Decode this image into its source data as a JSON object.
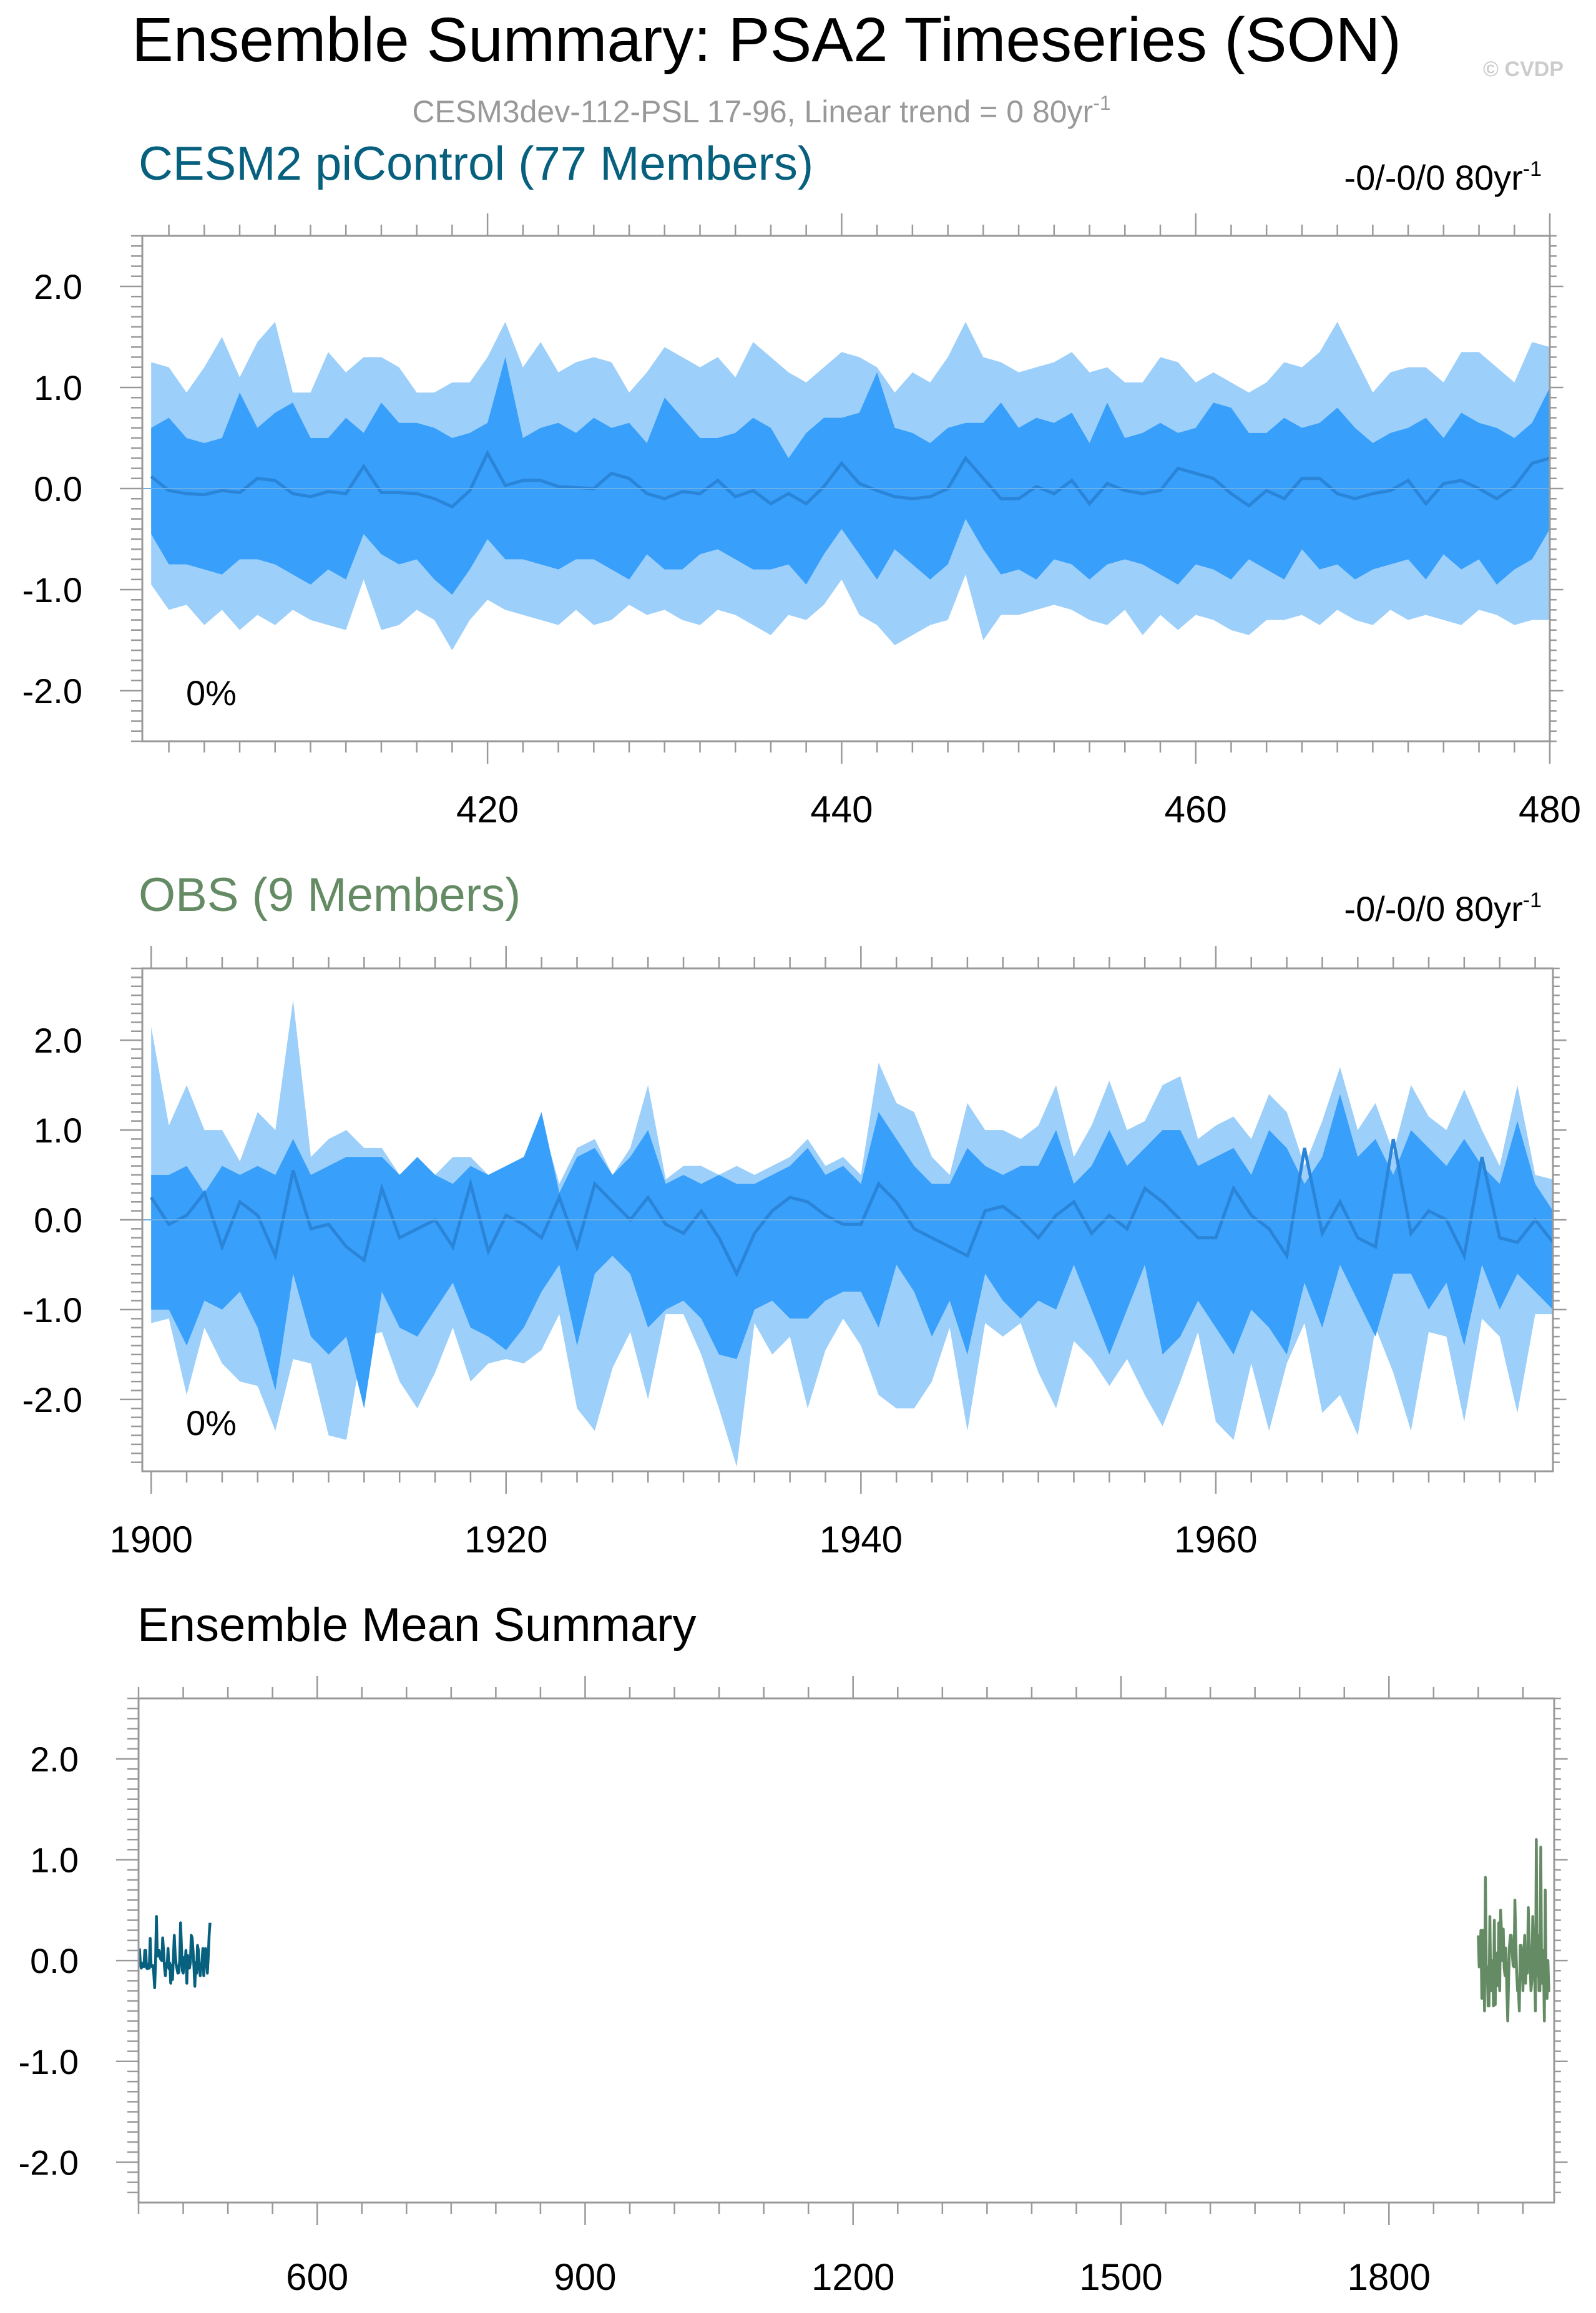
{
  "title": "Ensemble Summary: PSA2 Timeseries (SON)",
  "watermark": "© CVDP",
  "subtitle": "CESM3dev-112-PSL 17-96, Linear trend = 0 80yr",
  "subtitle_sup": "-1",
  "colors": {
    "outer_band": "#9ccffa",
    "inner_band": "#389ffa",
    "mean_line": "#2a84d8",
    "model": "#06607e",
    "obs": "#658b65",
    "subtitle": "#999999",
    "frame": "#999999",
    "text": "#000000"
  },
  "chart_data": [
    {
      "type": "area",
      "title": "CESM2 piControl (77 Members)",
      "title_color": "#06607e",
      "trend_label": "-0/-0/0 80yr",
      "trend_sup": "-1",
      "percent_label": "0%",
      "xlim": [
        400.5,
        480
      ],
      "ylim": [
        -2.5,
        2.5
      ],
      "xticks": [
        420,
        440,
        460,
        480
      ],
      "xtick_labels": [
        "420",
        "440",
        "460",
        "480"
      ],
      "yticks": [
        -2.0,
        -1.0,
        0.0,
        1.0,
        2.0
      ],
      "ytick_labels": [
        "-2.0",
        "-1.0",
        "0.0",
        "1.0",
        "2.0"
      ],
      "x_start": 401,
      "bands": {
        "outer_upper": [
          1.25,
          1.2,
          0.95,
          1.2,
          1.5,
          1.1,
          1.45,
          1.65,
          0.95,
          0.95,
          1.35,
          1.15,
          1.3,
          1.3,
          1.2,
          0.95,
          0.95,
          1.05,
          1.05,
          1.3,
          1.65,
          1.2,
          1.45,
          1.15,
          1.25,
          1.3,
          1.25,
          0.95,
          1.15,
          1.4,
          1.3,
          1.2,
          1.3,
          1.1,
          1.45,
          1.3,
          1.15,
          1.05,
          1.2,
          1.35,
          1.3,
          1.2,
          0.95,
          1.15,
          1.05,
          1.3,
          1.65,
          1.3,
          1.25,
          1.15,
          1.2,
          1.25,
          1.35,
          1.15,
          1.2,
          1.05,
          1.05,
          1.3,
          1.25,
          1.05,
          1.15,
          1.05,
          0.95,
          1.05,
          1.25,
          1.2,
          1.35,
          1.65,
          1.3,
          0.95,
          1.15,
          1.2,
          1.2,
          1.05,
          1.35,
          1.35,
          1.2,
          1.05,
          1.45,
          1.4
        ],
        "inner_upper": [
          0.6,
          0.7,
          0.5,
          0.45,
          0.5,
          0.95,
          0.6,
          0.75,
          0.85,
          0.5,
          0.5,
          0.7,
          0.55,
          0.85,
          0.65,
          0.65,
          0.6,
          0.5,
          0.55,
          0.65,
          1.3,
          0.5,
          0.6,
          0.65,
          0.55,
          0.7,
          0.6,
          0.65,
          0.45,
          0.9,
          0.7,
          0.5,
          0.5,
          0.55,
          0.7,
          0.6,
          0.3,
          0.55,
          0.7,
          0.7,
          0.75,
          1.15,
          0.6,
          0.55,
          0.45,
          0.6,
          0.65,
          0.65,
          0.85,
          0.6,
          0.7,
          0.65,
          0.75,
          0.45,
          0.85,
          0.5,
          0.55,
          0.65,
          0.55,
          0.6,
          0.85,
          0.8,
          0.55,
          0.55,
          0.7,
          0.6,
          0.65,
          0.8,
          0.6,
          0.45,
          0.55,
          0.6,
          0.7,
          0.5,
          0.75,
          0.65,
          0.6,
          0.5,
          0.65,
          1.0
        ],
        "mean": [
          0.12,
          -0.02,
          -0.05,
          -0.06,
          -0.02,
          -0.04,
          0.1,
          0.08,
          -0.05,
          -0.08,
          -0.03,
          -0.05,
          0.22,
          -0.04,
          -0.04,
          -0.05,
          -0.1,
          -0.18,
          -0.02,
          0.35,
          0.03,
          0.08,
          0.08,
          0.02,
          0.01,
          0.0,
          0.15,
          0.1,
          -0.05,
          -0.1,
          -0.03,
          -0.05,
          0.08,
          -0.08,
          -0.02,
          -0.15,
          -0.05,
          -0.15,
          0.02,
          0.25,
          0.05,
          -0.02,
          -0.08,
          -0.1,
          -0.08,
          0.0,
          0.3,
          0.1,
          -0.1,
          -0.1,
          0.02,
          -0.05,
          0.08,
          -0.15,
          0.05,
          -0.02,
          -0.05,
          -0.02,
          0.2,
          0.15,
          0.1,
          -0.05,
          -0.17,
          -0.02,
          -0.1,
          0.1,
          0.1,
          -0.05,
          -0.1,
          -0.05,
          -0.02,
          0.08,
          -0.15,
          0.05,
          0.08,
          0.0,
          -0.1,
          0.02,
          0.25,
          0.3
        ],
        "inner_lower": [
          -0.45,
          -0.75,
          -0.75,
          -0.8,
          -0.85,
          -0.7,
          -0.7,
          -0.75,
          -0.85,
          -0.95,
          -0.8,
          -0.9,
          -0.45,
          -0.65,
          -0.75,
          -0.7,
          -0.9,
          -1.05,
          -0.8,
          -0.5,
          -0.7,
          -0.7,
          -0.75,
          -0.8,
          -0.7,
          -0.7,
          -0.8,
          -0.9,
          -0.65,
          -0.8,
          -0.8,
          -0.65,
          -0.6,
          -0.7,
          -0.8,
          -0.8,
          -0.75,
          -0.95,
          -0.65,
          -0.4,
          -0.65,
          -0.9,
          -0.6,
          -0.75,
          -0.9,
          -0.75,
          -0.3,
          -0.6,
          -0.85,
          -0.8,
          -0.9,
          -0.7,
          -0.75,
          -0.9,
          -0.75,
          -0.7,
          -0.75,
          -0.85,
          -0.95,
          -0.75,
          -0.8,
          -0.9,
          -0.7,
          -0.8,
          -0.9,
          -0.6,
          -0.8,
          -0.75,
          -0.9,
          -0.8,
          -0.75,
          -0.7,
          -0.9,
          -0.65,
          -0.8,
          -0.7,
          -0.95,
          -0.8,
          -0.7,
          -0.4
        ],
        "outer_lower": [
          -0.95,
          -1.2,
          -1.15,
          -1.35,
          -1.2,
          -1.4,
          -1.25,
          -1.35,
          -1.2,
          -1.3,
          -1.35,
          -1.4,
          -0.9,
          -1.4,
          -1.35,
          -1.2,
          -1.3,
          -1.6,
          -1.3,
          -1.1,
          -1.2,
          -1.25,
          -1.3,
          -1.35,
          -1.2,
          -1.35,
          -1.3,
          -1.15,
          -1.25,
          -1.2,
          -1.3,
          -1.35,
          -1.2,
          -1.25,
          -1.35,
          -1.45,
          -1.25,
          -1.3,
          -1.15,
          -0.9,
          -1.25,
          -1.35,
          -1.55,
          -1.45,
          -1.35,
          -1.3,
          -0.85,
          -1.5,
          -1.25,
          -1.25,
          -1.2,
          -1.15,
          -1.2,
          -1.3,
          -1.35,
          -1.2,
          -1.45,
          -1.25,
          -1.4,
          -1.25,
          -1.3,
          -1.4,
          -1.45,
          -1.3,
          -1.3,
          -1.25,
          -1.35,
          -1.2,
          -1.3,
          -1.35,
          -1.2,
          -1.3,
          -1.25,
          -1.3,
          -1.35,
          -1.2,
          -1.25,
          -1.35,
          -1.3,
          -1.3
        ]
      }
    },
    {
      "type": "area",
      "title": "OBS (9 Members)",
      "title_color": "#658b65",
      "trend_label": "-0/-0/0 80yr",
      "trend_sup": "-1",
      "percent_label": "0%",
      "xlim": [
        1899.5,
        1979
      ],
      "ylim": [
        -2.8,
        2.8
      ],
      "xticks": [
        1900,
        1920,
        1940,
        1960
      ],
      "xtick_labels": [
        "1900",
        "1920",
        "1940",
        "1960"
      ],
      "yticks": [
        -2.0,
        -1.0,
        0.0,
        1.0,
        2.0
      ],
      "ytick_labels": [
        "-2.0",
        "-1.0",
        "0.0",
        "1.0",
        "2.0"
      ],
      "x_start": 1900,
      "bands": {
        "outer_upper": [
          2.15,
          1.05,
          1.5,
          1.0,
          1.0,
          0.65,
          1.2,
          1.0,
          2.45,
          0.7,
          0.9,
          1.0,
          0.8,
          0.8,
          0.5,
          0.7,
          0.5,
          0.7,
          0.7,
          0.5,
          0.6,
          0.7,
          1.1,
          0.4,
          0.8,
          0.9,
          0.5,
          0.8,
          1.5,
          0.45,
          0.6,
          0.6,
          0.5,
          0.6,
          0.5,
          0.6,
          0.7,
          0.9,
          0.6,
          0.7,
          0.5,
          1.75,
          1.3,
          1.2,
          0.7,
          0.5,
          1.3,
          1.0,
          1.0,
          0.9,
          1.05,
          1.5,
          0.7,
          1.05,
          1.55,
          1.0,
          1.1,
          1.5,
          1.6,
          0.9,
          1.05,
          1.15,
          0.9,
          1.4,
          1.2,
          0.6,
          1.1,
          1.7,
          1.0,
          1.3,
          0.75,
          1.5,
          1.15,
          1.0,
          1.45,
          1.0,
          0.6,
          1.5,
          0.5,
          0.45
        ],
        "inner_upper": [
          0.5,
          0.5,
          0.6,
          0.3,
          0.6,
          0.5,
          0.6,
          0.5,
          0.9,
          0.5,
          0.6,
          0.7,
          0.7,
          0.7,
          0.5,
          0.7,
          0.5,
          0.4,
          0.6,
          0.5,
          0.6,
          0.7,
          1.2,
          0.3,
          0.7,
          0.8,
          0.5,
          0.7,
          1.0,
          0.4,
          0.5,
          0.4,
          0.5,
          0.4,
          0.4,
          0.5,
          0.6,
          0.8,
          0.5,
          0.6,
          0.4,
          1.2,
          0.9,
          0.6,
          0.4,
          0.4,
          0.8,
          0.6,
          0.5,
          0.6,
          0.6,
          1.0,
          0.4,
          0.6,
          1.0,
          0.6,
          0.8,
          1.0,
          1.0,
          0.6,
          0.7,
          0.8,
          0.5,
          1.0,
          0.8,
          0.4,
          0.7,
          1.4,
          0.7,
          0.9,
          0.5,
          1.0,
          0.8,
          0.6,
          0.9,
          0.6,
          0.4,
          1.1,
          0.4,
          0.1
        ],
        "mean": [
          0.25,
          -0.05,
          0.05,
          0.3,
          -0.3,
          0.2,
          0.05,
          -0.4,
          0.55,
          -0.1,
          -0.05,
          -0.3,
          -0.45,
          0.35,
          -0.2,
          -0.1,
          0.0,
          -0.3,
          0.4,
          -0.35,
          0.05,
          -0.05,
          -0.2,
          0.25,
          -0.3,
          0.4,
          0.2,
          0.0,
          0.25,
          -0.05,
          -0.15,
          0.1,
          -0.2,
          -0.6,
          -0.15,
          0.1,
          0.25,
          0.2,
          0.05,
          -0.05,
          -0.05,
          0.4,
          0.2,
          -0.1,
          -0.2,
          -0.3,
          -0.4,
          0.1,
          0.15,
          0.0,
          -0.2,
          0.05,
          0.2,
          -0.15,
          0.05,
          -0.1,
          0.35,
          0.2,
          0.0,
          -0.2,
          -0.2,
          0.35,
          0.05,
          -0.1,
          -0.4,
          0.8,
          -0.15,
          0.2,
          -0.2,
          -0.3,
          0.9,
          -0.15,
          0.1,
          0.0,
          -0.4,
          0.7,
          -0.2,
          -0.25,
          0.0,
          -0.25
        ],
        "inner_lower": [
          -1.0,
          -1.0,
          -1.4,
          -0.9,
          -1.0,
          -0.8,
          -1.2,
          -1.9,
          -0.6,
          -1.3,
          -1.5,
          -1.3,
          -2.1,
          -0.8,
          -1.2,
          -1.3,
          -1.0,
          -0.7,
          -1.2,
          -1.3,
          -1.45,
          -1.2,
          -0.8,
          -0.5,
          -1.4,
          -0.6,
          -0.4,
          -0.6,
          -1.2,
          -1.0,
          -0.9,
          -1.1,
          -1.5,
          -1.55,
          -1.0,
          -0.9,
          -1.1,
          -1.1,
          -0.9,
          -0.8,
          -0.8,
          -1.2,
          -0.5,
          -0.8,
          -1.3,
          -0.9,
          -1.5,
          -0.6,
          -0.9,
          -1.1,
          -0.9,
          -1.0,
          -0.5,
          -1.0,
          -1.5,
          -1.0,
          -0.5,
          -1.5,
          -1.3,
          -0.9,
          -1.2,
          -1.5,
          -1.0,
          -1.2,
          -1.5,
          -0.7,
          -1.2,
          -0.5,
          -0.9,
          -1.3,
          -0.6,
          -0.6,
          -1.0,
          -0.7,
          -1.4,
          -0.5,
          -1.0,
          -0.6,
          -0.8,
          -1.0
        ],
        "outer_lower": [
          -1.15,
          -1.1,
          -1.95,
          -1.2,
          -1.6,
          -1.8,
          -1.85,
          -2.35,
          -1.55,
          -1.6,
          -2.4,
          -2.45,
          -1.3,
          -1.25,
          -1.8,
          -2.1,
          -1.7,
          -1.2,
          -1.8,
          -1.6,
          -1.55,
          -1.6,
          -1.45,
          -1.05,
          -2.1,
          -2.35,
          -1.65,
          -1.25,
          -2.0,
          -1.05,
          -1.05,
          -1.5,
          -2.1,
          -2.75,
          -1.15,
          -1.5,
          -1.3,
          -2.1,
          -1.45,
          -1.1,
          -1.4,
          -1.95,
          -2.1,
          -2.1,
          -1.8,
          -1.2,
          -2.35,
          -1.15,
          -1.3,
          -1.15,
          -1.7,
          -2.1,
          -1.35,
          -1.55,
          -1.85,
          -1.55,
          -1.95,
          -2.3,
          -1.8,
          -1.25,
          -2.25,
          -2.45,
          -1.6,
          -2.35,
          -1.6,
          -1.15,
          -2.15,
          -1.95,
          -2.4,
          -1.2,
          -1.7,
          -2.35,
          -1.25,
          -1.3,
          -2.25,
          -1.1,
          -1.3,
          -2.15,
          -1.05,
          -1.05
        ]
      }
    },
    {
      "type": "line",
      "title": "Ensemble Mean Summary",
      "title_color": "#000000",
      "xlim": [
        400,
        1985
      ],
      "ylim": [
        -2.4,
        2.6
      ],
      "xticks": [
        600,
        900,
        1200,
        1500,
        1800
      ],
      "xtick_labels": [
        "600",
        "900",
        "1200",
        "1500",
        "1800"
      ],
      "yticks": [
        -2.0,
        -1.0,
        0.0,
        1.0,
        2.0
      ],
      "ytick_labels": [
        "-2.0",
        "-1.0",
        "0.0",
        "1.0",
        "2.0"
      ],
      "series": [
        {
          "color": "#06607e",
          "x_start": 401,
          "values": [
            0.12,
            -0.02,
            -0.05,
            -0.06,
            -0.02,
            -0.04,
            0.1,
            0.08,
            -0.05,
            -0.08,
            -0.03,
            -0.05,
            0.22,
            -0.04,
            -0.04,
            -0.05,
            -0.1,
            -0.18,
            -0.02,
            0.35,
            0.03,
            0.08,
            0.08,
            0.02,
            0.01,
            0.0,
            0.15,
            0.1,
            -0.05,
            -0.1,
            -0.03,
            -0.05,
            0.08,
            -0.08,
            -0.02,
            -0.15,
            -0.05,
            -0.15,
            0.02,
            0.25,
            0.05,
            -0.02,
            -0.08,
            -0.1,
            -0.08,
            0.0,
            0.3,
            0.1,
            -0.1,
            -0.1,
            0.02,
            -0.05,
            0.08,
            -0.15,
            0.05,
            -0.02,
            -0.05,
            -0.02,
            0.2,
            0.15,
            0.1,
            -0.05,
            -0.17,
            -0.02,
            -0.1,
            0.1,
            0.1,
            -0.05,
            -0.1,
            -0.05,
            -0.02,
            0.08,
            -0.15,
            0.05,
            0.08,
            0.0,
            -0.1,
            0.02,
            0.25,
            0.3
          ]
        },
        {
          "color": "#658b65",
          "x_start": 1900,
          "values": [
            0.25,
            -0.05,
            0.05,
            0.3,
            -0.3,
            0.2,
            0.05,
            -0.4,
            0.55,
            -0.1,
            -0.05,
            -0.3,
            -0.45,
            0.35,
            -0.2,
            -0.1,
            0.0,
            -0.3,
            0.4,
            -0.35,
            0.05,
            -0.05,
            -0.2,
            0.25,
            -0.3,
            0.4,
            0.2,
            0.0,
            0.25,
            -0.05,
            -0.15,
            0.1,
            -0.2,
            -0.6,
            -0.15,
            0.1,
            0.25,
            0.2,
            0.05,
            -0.05,
            -0.05,
            0.4,
            0.2,
            -0.1,
            -0.2,
            -0.3,
            -0.4,
            0.1,
            0.15,
            0.0,
            -0.2,
            0.05,
            0.2,
            -0.15,
            0.05,
            -0.1,
            0.35,
            0.2,
            0.0,
            -0.2,
            -0.2,
            0.35,
            0.05,
            -0.1,
            -0.4,
            0.8,
            -0.15,
            0.2,
            -0.2,
            -0.3,
            0.9,
            -0.15,
            0.1,
            0.0,
            -0.4,
            0.7,
            -0.2,
            -0.25,
            0.0,
            -0.25
          ]
        }
      ]
    }
  ]
}
